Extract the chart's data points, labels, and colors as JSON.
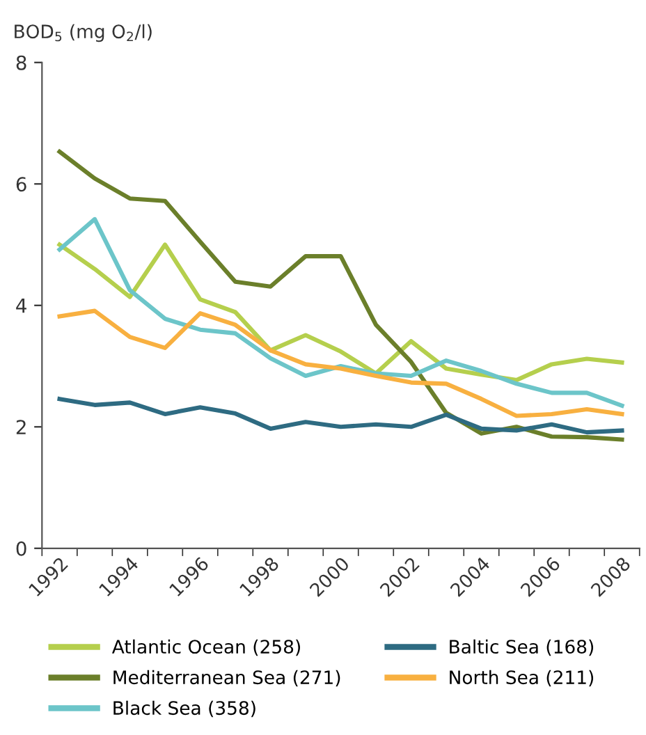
{
  "chart_data": {
    "type": "line",
    "ylabel": "BOD$_{5}$ (mg O$_{2}$/l)",
    "categories": [
      "1992",
      null,
      "1994",
      null,
      "1996",
      null,
      "1998",
      null,
      "2000",
      null,
      "2002",
      null,
      "2004",
      null,
      "2006",
      null,
      "2008"
    ],
    "ylim": [
      0,
      8
    ],
    "yticks": [
      0,
      2,
      4,
      6,
      8
    ],
    "grid": false,
    "legend": "bottom",
    "marker": "none",
    "line_style": "solid",
    "series": [
      {
        "name": "Atlantic Ocean (258)",
        "color": "#b5cf4d",
        "values": [
          5.0,
          4.6,
          4.14,
          5.0,
          4.1,
          3.89,
          3.26,
          3.51,
          3.24,
          2.88,
          3.41,
          2.96,
          2.86,
          2.77,
          3.03,
          3.12,
          3.06
        ]
      },
      {
        "name": "Mediterranean Sea (271)",
        "color": "#6b7f2a",
        "values": [
          6.53,
          6.09,
          5.76,
          5.72,
          5.05,
          4.39,
          4.31,
          4.81,
          4.81,
          3.68,
          3.07,
          2.23,
          1.89,
          2.0,
          1.84,
          1.83,
          1.79
        ]
      },
      {
        "name": "Black Sea (358)",
        "color": "#6cc5c9",
        "values": [
          4.92,
          5.42,
          4.25,
          3.78,
          3.6,
          3.54,
          3.13,
          2.84,
          3.0,
          2.88,
          2.84,
          3.09,
          2.92,
          2.71,
          2.56,
          2.56,
          2.35
        ]
      },
      {
        "name": "Baltic Sea (168)",
        "color": "#2e6b82",
        "values": [
          2.46,
          2.36,
          2.4,
          2.21,
          2.32,
          2.22,
          1.97,
          2.08,
          2.0,
          2.04,
          2.0,
          2.2,
          1.97,
          1.94,
          2.04,
          1.91,
          1.94
        ]
      },
      {
        "name": "North Sea (211)",
        "color": "#f8b040",
        "values": [
          3.82,
          3.91,
          3.48,
          3.3,
          3.87,
          3.68,
          3.26,
          3.03,
          2.96,
          2.84,
          2.73,
          2.71,
          2.46,
          2.18,
          2.21,
          2.29,
          2.21
        ]
      }
    ]
  }
}
